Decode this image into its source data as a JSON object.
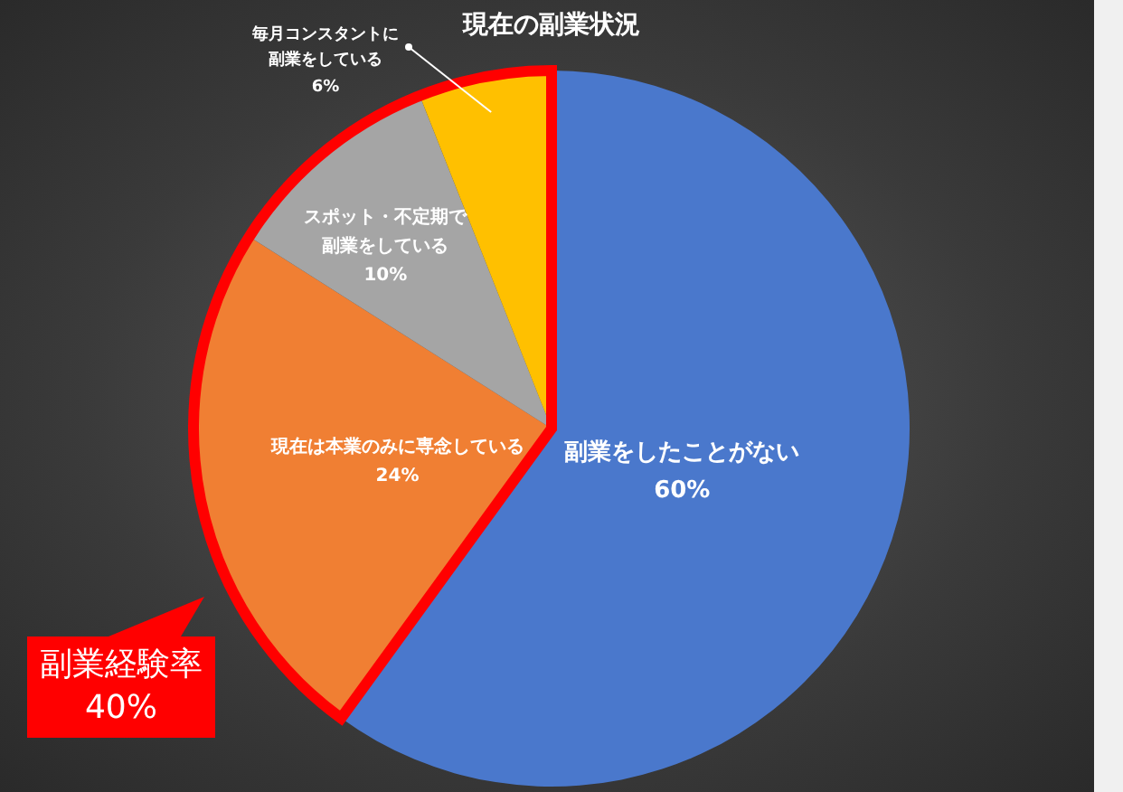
{
  "chart_data": {
    "type": "pie",
    "title": "現在の副業状況",
    "categories": [
      "副業をしたことがない",
      "現在は本業のみに専念している",
      "スポット・不定期で副業をしている",
      "毎月コンスタントに副業をしている"
    ],
    "values": [
      60,
      24,
      10,
      6
    ],
    "value_labels": [
      "60%",
      "24%",
      "10%",
      "6%"
    ],
    "colors": [
      "#4a78cc",
      "#f07f33",
      "#a5a5a5",
      "#ffc000"
    ],
    "legend": false,
    "annotations": [
      "副業経験率 40%"
    ]
  }
}
